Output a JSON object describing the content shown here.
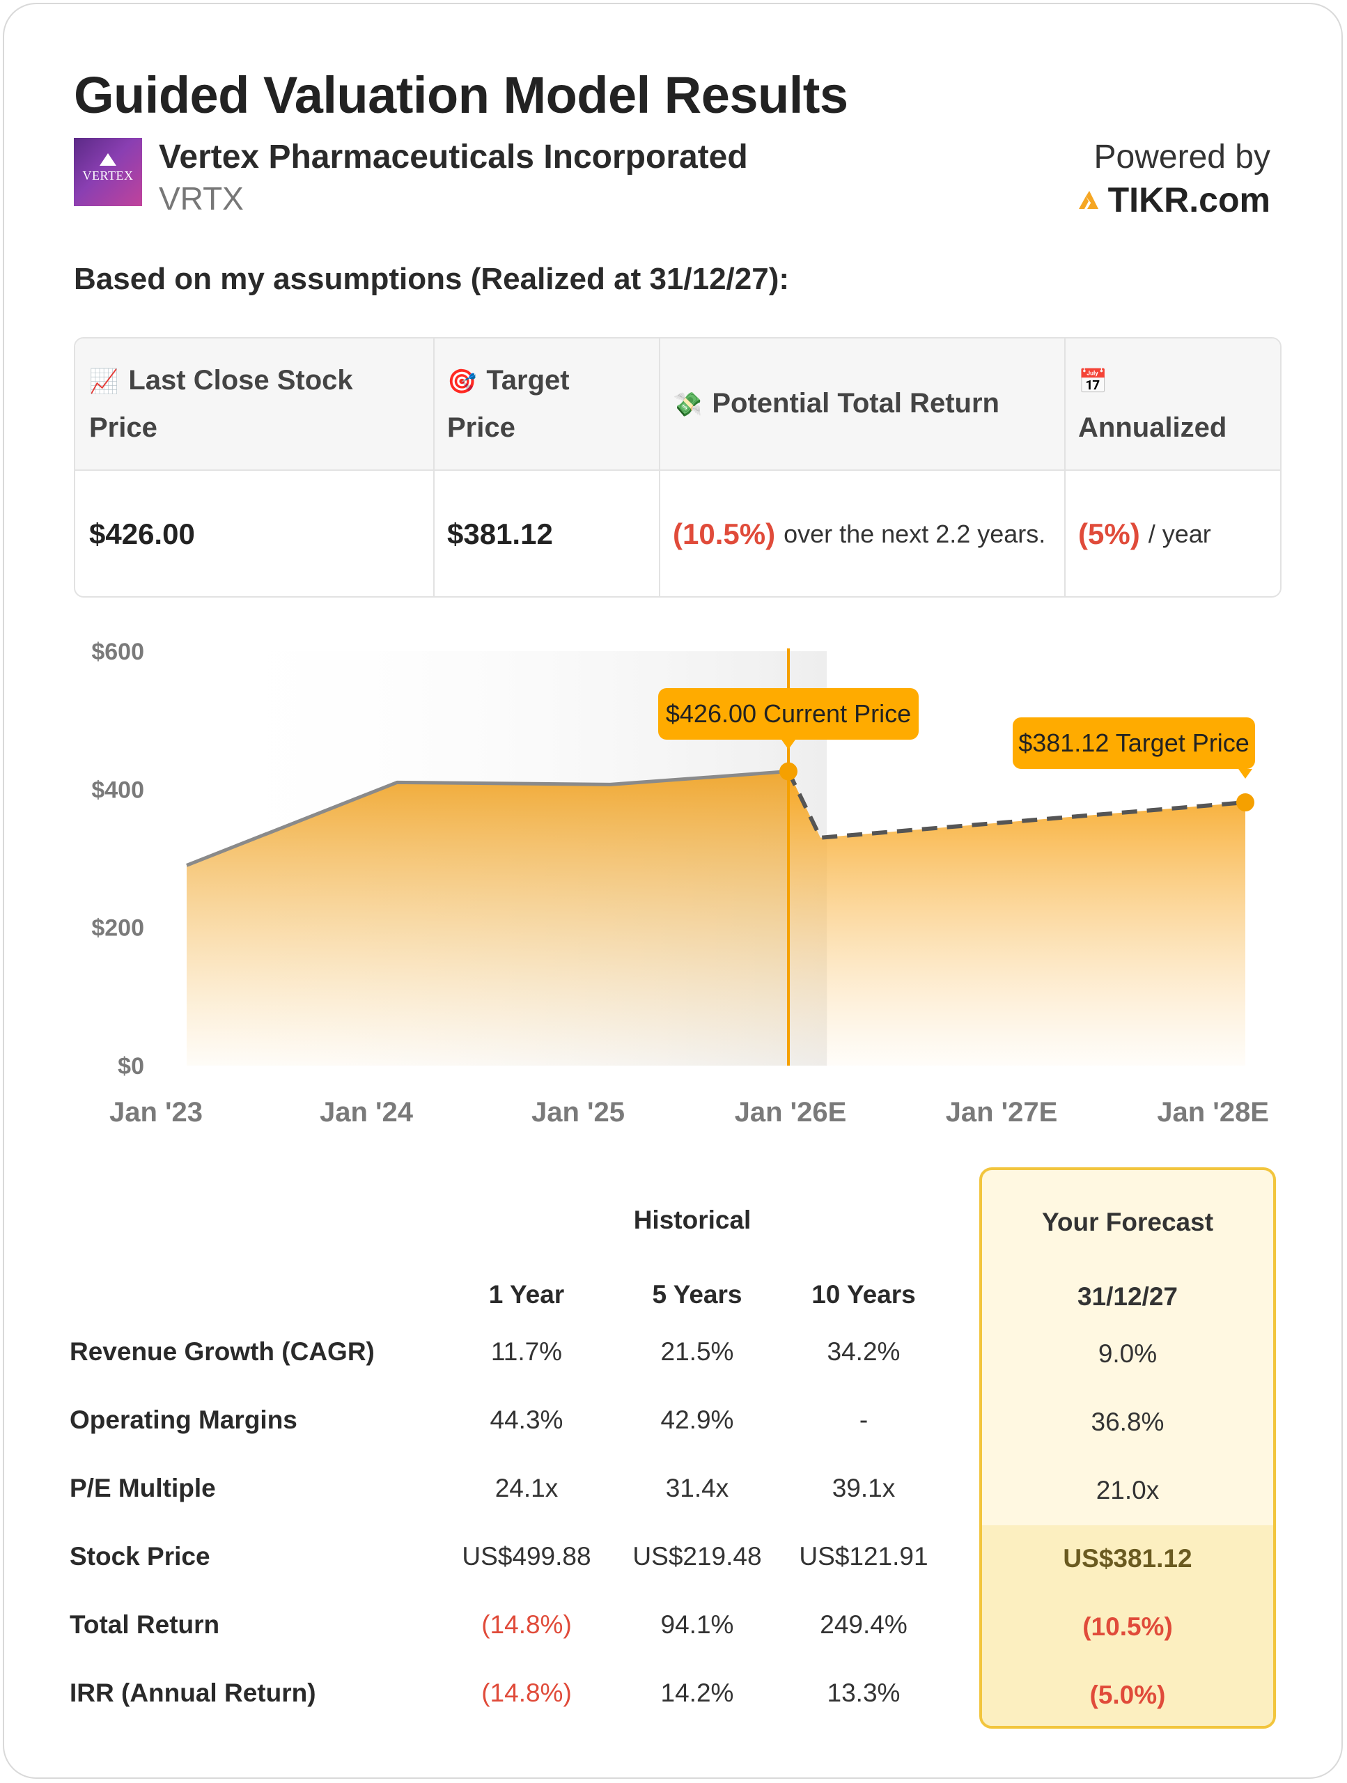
{
  "header": {
    "title": "Guided Valuation Model Results",
    "company": "Vertex Pharmaceuticals Incorporated",
    "ticker": "VRTX",
    "logo_text": "VERTEX",
    "powered_by": "Powered by",
    "brand": "TIKR.com",
    "brand_color": "#f5a623"
  },
  "assumption_text": "Based on my assumptions (Realized at 31/12/27):",
  "summary": {
    "headers": [
      {
        "icon": "chart-increasing-icon",
        "glyph": "📈",
        "label": "Last Close Stock Price"
      },
      {
        "icon": "target-icon",
        "glyph": "🎯",
        "label": "Target Price"
      },
      {
        "icon": "money-with-wings-icon",
        "glyph": "💸",
        "label": "Potential Total Return"
      },
      {
        "icon": "calendar-icon",
        "glyph": "📅",
        "label": "Annualized"
      }
    ],
    "last_close": "$426.00",
    "target": "$381.12",
    "total_return": "(10.5%)",
    "total_return_suffix": "over the next 2.2 years.",
    "annualized": "(5%)",
    "annualized_suffix": "/ year"
  },
  "chart_data": {
    "type": "area",
    "x": [
      "Jan '23",
      "Jan '24",
      "Jan '25",
      "Jan '26E",
      "Jan '27E",
      "Jan '28E"
    ],
    "y_ticks": [
      "$0",
      "$200",
      "$400",
      "$600"
    ],
    "ylim": [
      0,
      600
    ],
    "historical": [
      {
        "x": "Jan '23",
        "y": 290
      },
      {
        "x": "Jan '24",
        "y": 410
      },
      {
        "x": "Jan '25",
        "y": 407
      },
      {
        "x": "Jan '26E",
        "y": 426
      }
    ],
    "forecast": [
      {
        "x": "Jan '26E",
        "y": 426
      },
      {
        "x": "Feb '26E",
        "y": 330
      },
      {
        "x": "Jan '28E",
        "y": 381.12
      }
    ],
    "callouts": [
      {
        "label": "$426.00 Current Price",
        "y": 426
      },
      {
        "label": "$381.12 Target Price",
        "y": 381.12
      }
    ],
    "colors": {
      "area": "#f5a623",
      "line": "#8a8a8a",
      "marker": "#f5a000",
      "callout": "#ffab00"
    }
  },
  "metrics": {
    "historical_label": "Historical",
    "forecast_label": "Your Forecast",
    "columns": [
      "1 Year",
      "5 Years",
      "10 Years"
    ],
    "forecast_date": "31/12/27",
    "rows": [
      {
        "label": "Revenue Growth (CAGR)",
        "values": [
          "11.7%",
          "21.5%",
          "34.2%"
        ],
        "forecast": "9.0%"
      },
      {
        "label": "Operating Margins",
        "values": [
          "44.3%",
          "42.9%",
          "-"
        ],
        "forecast": "36.8%"
      },
      {
        "label": "P/E Multiple",
        "values": [
          "24.1x",
          "31.4x",
          "39.1x"
        ],
        "forecast": "21.0x"
      },
      {
        "label": "Stock Price",
        "values": [
          "US$499.88",
          "US$219.48",
          "US$121.91"
        ],
        "forecast": "US$381.12"
      },
      {
        "label": "Total Return",
        "values": [
          "(14.8%)",
          "94.1%",
          "249.4%"
        ],
        "forecast": "(10.5%)"
      },
      {
        "label": "IRR (Annual Return)",
        "values": [
          "(14.8%)",
          "14.2%",
          "13.3%"
        ],
        "forecast": "(5.0%)"
      }
    ]
  }
}
